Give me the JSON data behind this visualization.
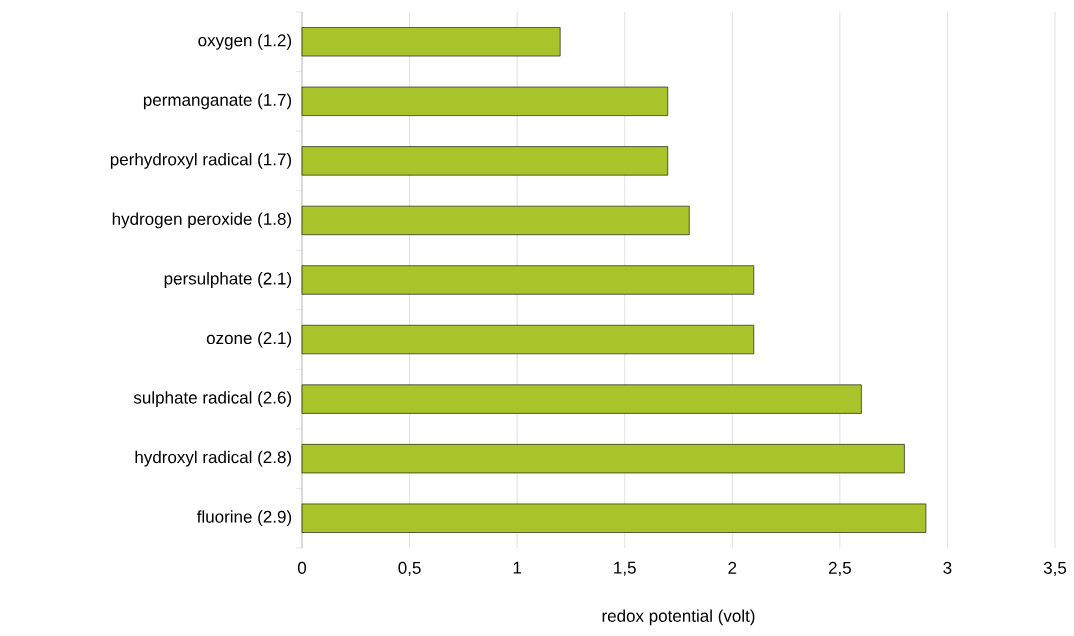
{
  "chart_data": {
    "type": "bar",
    "orientation": "horizontal",
    "xlabel": "redox potential (volt)",
    "categories": [
      "oxygen (1.2)",
      "permanganate (1.7)",
      "perhydroxyl radical (1.7)",
      "hydrogen peroxide (1.8)",
      "persulphate (2.1)",
      "ozone (2.1)",
      "sulphate radical (2.6)",
      "hydroxyl radical (2.8)",
      "fluorine (2.9)"
    ],
    "values": [
      1.2,
      1.7,
      1.7,
      1.8,
      2.1,
      2.1,
      2.6,
      2.8,
      2.9
    ],
    "color": "#a9c42a",
    "xlim": [
      0,
      3.5
    ],
    "xticks": [
      0,
      {
        "value": 0.5,
        "label": "0,5"
      },
      1,
      {
        "value": 1.5,
        "label": "1,5"
      },
      2,
      {
        "value": 2.5,
        "label": "2,5"
      },
      3,
      {
        "value": 3.5,
        "label": "3,5"
      }
    ],
    "grid": "x"
  }
}
